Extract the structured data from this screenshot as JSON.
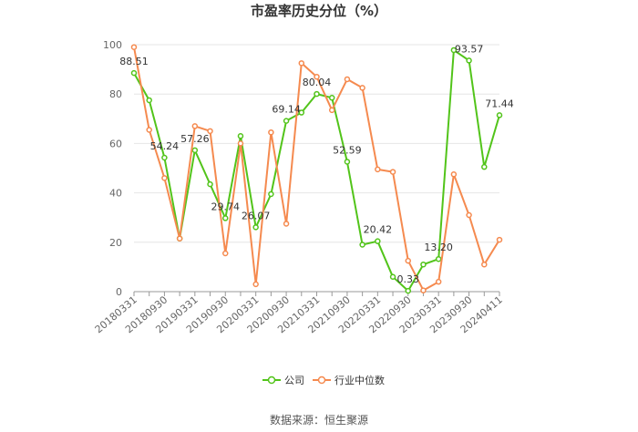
{
  "chart_data": {
    "type": "line",
    "title": "市盈率历史分位（%）",
    "source": "数据来源：恒生聚源",
    "ylim": [
      0,
      100
    ],
    "yticks": [
      0,
      20,
      40,
      60,
      80,
      100
    ],
    "x": [
      "20180331",
      "20180630",
      "20180930",
      "20181231",
      "20190331",
      "20190630",
      "20190930",
      "20191231",
      "20200331",
      "20200630",
      "20200930",
      "20201231",
      "20210331",
      "20210630",
      "20210930",
      "20211231",
      "20220331",
      "20220630",
      "20220930",
      "20221231",
      "20230331",
      "20230630",
      "20230930",
      "20231231",
      "20240411"
    ],
    "xtick_labels": [
      "20180331",
      "20180930",
      "20190331",
      "20190930",
      "20200331",
      "20200930",
      "20210331",
      "20210930",
      "20220331",
      "20220930",
      "20230331",
      "20230930",
      "20240411"
    ],
    "grid": true,
    "legend_position": "bottom",
    "series": [
      {
        "name": "公司",
        "color": "#52c41a",
        "values": [
          88.51,
          77.5,
          54.24,
          21.5,
          57.26,
          43.5,
          29.74,
          63.0,
          26.07,
          39.5,
          69.14,
          72.5,
          80.04,
          78.5,
          52.59,
          19.0,
          20.42,
          6.0,
          0.33,
          11.0,
          13.2,
          97.8,
          93.57,
          50.5,
          71.44
        ],
        "labels": {
          "0": "88.51",
          "2": "54.24",
          "4": "57.26",
          "6": "29.74",
          "8": "26.07",
          "10": "69.14",
          "12": "80.04",
          "14": "52.59",
          "16": "20.42",
          "18": "0.33",
          "20": "13.20",
          "22": "93.57",
          "24": "71.44"
        }
      },
      {
        "name": "行业中位数",
        "color": "#f58a4f",
        "values": [
          99.0,
          65.5,
          46.0,
          21.5,
          67.0,
          65.0,
          15.5,
          60.0,
          3.0,
          64.5,
          27.5,
          92.5,
          87.0,
          73.5,
          86.0,
          82.5,
          49.5,
          48.5,
          12.5,
          0.5,
          4.0,
          47.5,
          31.0,
          11.0,
          21.0
        ]
      }
    ]
  }
}
